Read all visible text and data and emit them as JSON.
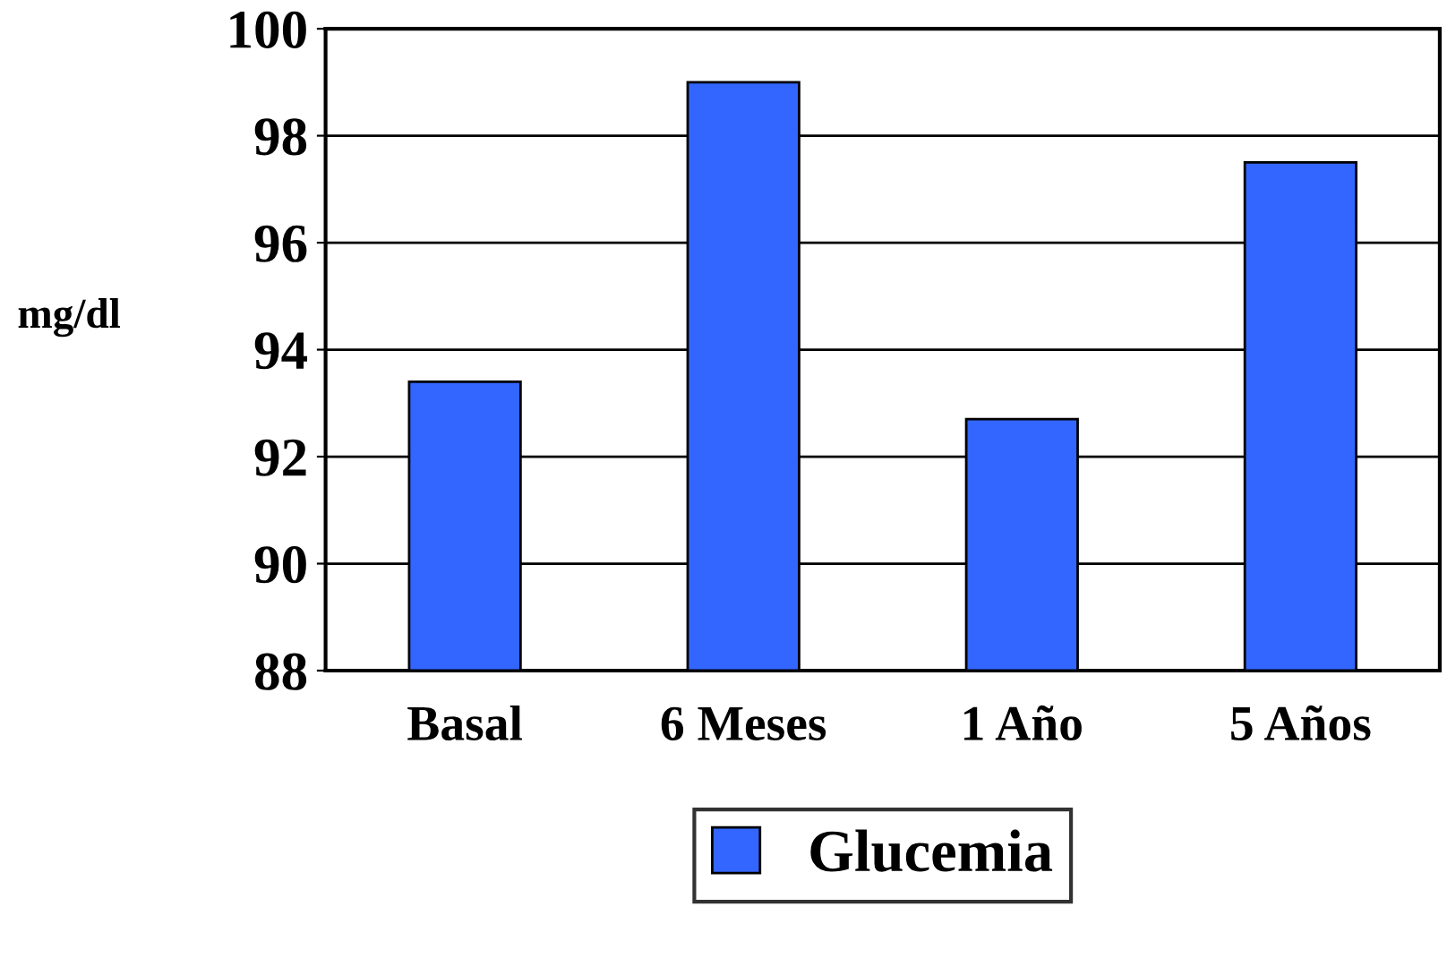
{
  "chart_data": {
    "type": "bar",
    "ylabel": "mg/dl",
    "categories": [
      "Basal",
      "6 Meses",
      "1 Año",
      "5 Años"
    ],
    "series": [
      {
        "name": "Glucemia",
        "color": "#3366ff",
        "values": [
          93.4,
          99.0,
          92.7,
          97.5
        ]
      }
    ],
    "ylim": [
      88,
      100
    ],
    "yticks": [
      88,
      90,
      92,
      94,
      96,
      98,
      100
    ],
    "grid": "y",
    "legend": "bottom"
  }
}
